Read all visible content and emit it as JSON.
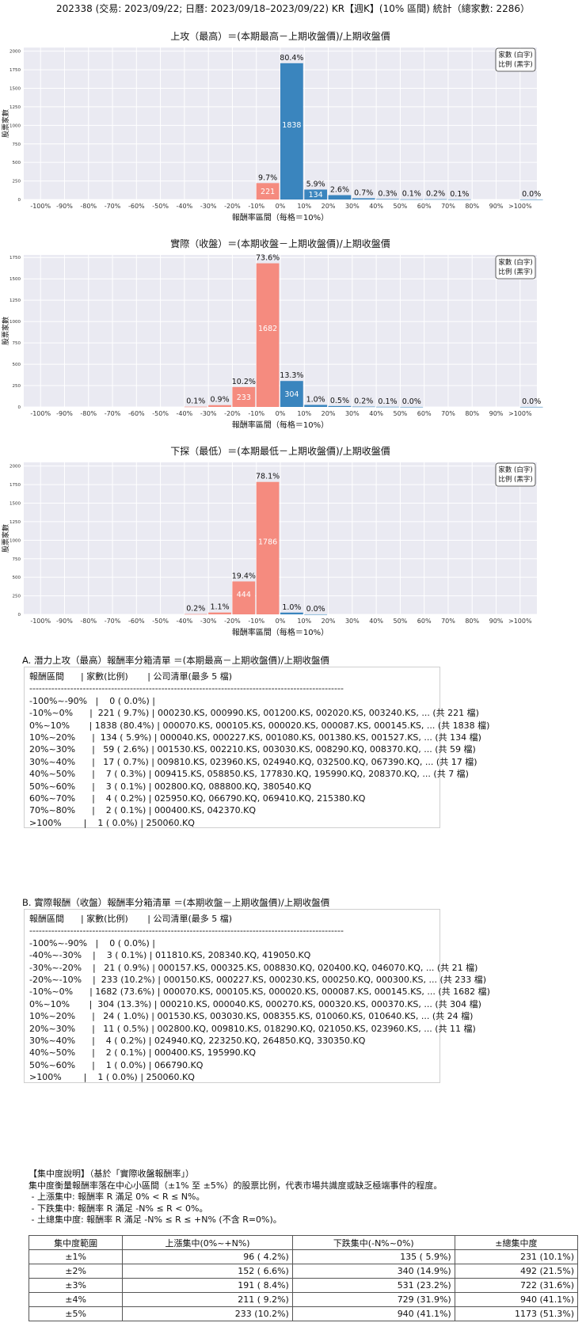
{
  "header": "202338 (交易: 2023/09/22; 日曆: 2023/09/18–2023/09/22) KR【週K】(10% 區間) 統計（總家數: 2286）",
  "legend": [
    "家數 (白字)",
    "比例 (黑字)"
  ],
  "colors": {
    "positive": "#3a85be",
    "negative": "#f58b7f",
    "plot_bg": "#eaeaf2"
  },
  "chart_data": [
    {
      "type": "bar",
      "title": "上攻（最高）＝(本期最高－上期收盤價)/上期收盤價",
      "xlabel": "報酬率區間（每格＝10%）",
      "ylabel": "股票家數",
      "ylim": [
        0,
        2050
      ],
      "yticks": [
        0,
        250,
        500,
        750,
        1000,
        1250,
        1500,
        1750,
        2000
      ],
      "categories": [
        "-100%",
        "-90%",
        "-80%",
        "-70%",
        "-60%",
        "-50%",
        "-40%",
        "-30%",
        "-20%",
        "-10%",
        "0%",
        "10%",
        "20%",
        "30%",
        "40%",
        "50%",
        "60%",
        "70%",
        "80%",
        "90%",
        ">100%"
      ],
      "bars": [
        {
          "x": -1,
          "count": 221,
          "pct": "9.7%"
        },
        {
          "x": 0,
          "count": 1838,
          "pct": "80.4%"
        },
        {
          "x": 1,
          "count": 134,
          "pct": "5.9%"
        },
        {
          "x": 2,
          "count": 59,
          "pct": "2.6%"
        },
        {
          "x": 3,
          "count": 17,
          "pct": "0.7%"
        },
        {
          "x": 4,
          "count": 7,
          "pct": "0.3%"
        },
        {
          "x": 5,
          "count": 3,
          "pct": "0.1%"
        },
        {
          "x": 6,
          "count": 4,
          "pct": "0.2%"
        },
        {
          "x": 7,
          "count": 2,
          "pct": "0.1%"
        },
        {
          "x": 10,
          "count": 1,
          "pct": "0.0%"
        }
      ]
    },
    {
      "type": "bar",
      "title": "實際（收盤）＝(本期收盤－上期收盤價)/上期收盤價",
      "xlabel": "報酬率區間（每格＝10%）",
      "ylabel": "股票家數",
      "ylim": [
        0,
        1780
      ],
      "yticks": [
        0,
        250,
        500,
        750,
        1000,
        1250,
        1500,
        1750
      ],
      "categories": [
        "-100%",
        "-90%",
        "-80%",
        "-70%",
        "-60%",
        "-50%",
        "-40%",
        "-30%",
        "-20%",
        "-10%",
        "0%",
        "10%",
        "20%",
        "30%",
        "40%",
        "50%",
        "60%",
        "70%",
        "80%",
        "90%",
        ">100%"
      ],
      "bars": [
        {
          "x": -4,
          "count": 3,
          "pct": "0.1%"
        },
        {
          "x": -3,
          "count": 21,
          "pct": "0.9%"
        },
        {
          "x": -2,
          "count": 233,
          "pct": "10.2%"
        },
        {
          "x": -1,
          "count": 1682,
          "pct": "73.6%"
        },
        {
          "x": 0,
          "count": 304,
          "pct": "13.3%"
        },
        {
          "x": 1,
          "count": 24,
          "pct": "1.0%"
        },
        {
          "x": 2,
          "count": 11,
          "pct": "0.5%"
        },
        {
          "x": 3,
          "count": 4,
          "pct": "0.2%"
        },
        {
          "x": 4,
          "count": 2,
          "pct": "0.1%"
        },
        {
          "x": 5,
          "count": 1,
          "pct": "0.0%"
        },
        {
          "x": 10,
          "count": 1,
          "pct": "0.0%"
        }
      ]
    },
    {
      "type": "bar",
      "title": "下探（最低）＝(本期最低－上期收盤價)/上期收盤價",
      "xlabel": "報酬率區間（每格＝10%）",
      "ylabel": "股票家數",
      "ylim": [
        0,
        2050
      ],
      "yticks": [
        0,
        250,
        500,
        750,
        1000,
        1250,
        1500,
        1750,
        2000
      ],
      "categories": [
        "-100%",
        "-90%",
        "-80%",
        "-70%",
        "-60%",
        "-50%",
        "-40%",
        "-30%",
        "-20%",
        "-10%",
        "0%",
        "10%",
        "20%",
        "30%",
        "40%",
        "50%",
        "60%",
        "70%",
        "80%",
        "90%",
        ">100%"
      ],
      "bars": [
        {
          "x": -4,
          "count": 4,
          "pct": "0.2%"
        },
        {
          "x": -3,
          "count": 25,
          "pct": "1.1%"
        },
        {
          "x": -2,
          "count": 444,
          "pct": "19.4%"
        },
        {
          "x": -1,
          "count": 1786,
          "pct": "78.1%"
        },
        {
          "x": 0,
          "count": 24,
          "pct": "1.0%"
        },
        {
          "x": 1,
          "count": 1,
          "pct": "0.0%"
        }
      ]
    }
  ],
  "section_a": {
    "title": "A. 潛力上攻（最高）報酬率分箱清單 ＝(本期最高－上期收盤價)/上期收盤價",
    "lines": [
      "報酬區間      | 家數(比例)       | 公司清單(最多 5 檔)",
      "----------------------------------------------------------------------------------------------------",
      "-100%~-90%   |    0 ( 0.0%) |",
      "-10%~0%      |  221 ( 9.7%) | 000230.KS, 000990.KS, 001200.KS, 002020.KS, 003240.KS, ... (共 221 檔)",
      "0%~10%       | 1838 (80.4%) | 000070.KS, 000105.KS, 000020.KS, 000087.KS, 000145.KS, ... (共 1838 檔)",
      "10%~20%      |  134 ( 5.9%) | 000040.KS, 000227.KS, 001080.KS, 001380.KS, 001527.KS, ... (共 134 檔)",
      "20%~30%      |   59 ( 2.6%) | 001530.KS, 002210.KS, 003030.KS, 008290.KQ, 008370.KQ, ... (共 59 檔)",
      "30%~40%      |   17 ( 0.7%) | 009810.KS, 023960.KS, 024940.KQ, 032500.KQ, 067390.KQ, ... (共 17 檔)",
      "40%~50%      |    7 ( 0.3%) | 009415.KS, 058850.KS, 177830.KQ, 195990.KQ, 208370.KQ, ... (共 7 檔)",
      "50%~60%      |    3 ( 0.1%) | 002800.KQ, 088800.KQ, 380540.KQ",
      "60%~70%      |    4 ( 0.2%) | 025950.KQ, 066790.KQ, 069410.KQ, 215380.KQ",
      "70%~80%      |    2 ( 0.1%) | 000400.KS, 042370.KQ",
      ">100%        |    1 ( 0.0%) | 250060.KQ"
    ]
  },
  "section_b": {
    "title": "B. 實際報酬（收盤）報酬率分箱清單 ＝(本期收盤－上期收盤價)/上期收盤價",
    "lines": [
      "報酬區間      | 家數(比例)       | 公司清單(最多 5 檔)",
      "----------------------------------------------------------------------------------------------------",
      "-100%~-90%   |    0 ( 0.0%) |",
      "-40%~-30%    |    3 ( 0.1%) | 011810.KS, 208340.KQ, 419050.KQ",
      "-30%~-20%    |   21 ( 0.9%) | 000157.KS, 000325.KS, 008830.KQ, 020400.KQ, 046070.KQ, ... (共 21 檔)",
      "-20%~-10%    |  233 (10.2%) | 000150.KS, 000227.KS, 000230.KS, 000250.KQ, 000300.KS, ... (共 233 檔)",
      "-10%~0%      | 1682 (73.6%) | 000070.KS, 000105.KS, 000020.KS, 000087.KS, 000145.KS, ... (共 1682 檔)",
      "0%~10%       |  304 (13.3%) | 000210.KS, 000040.KS, 000270.KS, 000320.KS, 000370.KS, ... (共 304 檔)",
      "10%~20%      |   24 ( 1.0%) | 001530.KS, 003030.KS, 008355.KS, 010060.KS, 010640.KS, ... (共 24 檔)",
      "20%~30%      |   11 ( 0.5%) | 002800.KQ, 009810.KS, 018290.KQ, 021050.KS, 023960.KS, ... (共 11 檔)",
      "30%~40%      |    4 ( 0.2%) | 024940.KQ, 223250.KQ, 264850.KQ, 330350.KQ",
      "40%~50%      |    2 ( 0.1%) | 000400.KS, 195990.KQ",
      "50%~60%      |    1 ( 0.0%) | 066790.KQ",
      ">100%        |    1 ( 0.0%) | 250060.KQ"
    ]
  },
  "concentration": {
    "notes": [
      "【集中度說明】（基於「實際收盤報酬率」）",
      "集中度衡量報酬率落在中心小區間（±1% 至 ±5%）的股票比例，代表市場共識度或缺乏極端事件的程度。",
      " - 上漲集中: 報酬率 R 滿足 0% < R ≤ N%。",
      " - 下跌集中: 報酬率 R 滿足 -N% ≤ R < 0%。",
      " - 土總集中度: 報酬率 R 滿足 -N% ≤ R ≤ +N% (不含 R=0%)。"
    ],
    "headers": [
      "集中度範圍",
      "上漲集中(0%~+N%)",
      "下跌集中(-N%~0%)",
      "±總集中度"
    ],
    "rows": [
      [
        "±1%",
        "96 ( 4.2%)",
        "135 ( 5.9%)",
        "231 (10.1%)"
      ],
      [
        "±2%",
        "152 ( 6.6%)",
        "340 (14.9%)",
        "492 (21.5%)"
      ],
      [
        "±3%",
        "191 ( 8.4%)",
        "531 (23.2%)",
        "722 (31.6%)"
      ],
      [
        "±4%",
        "211 ( 9.2%)",
        "729 (31.9%)",
        "940 (41.1%)"
      ],
      [
        "±5%",
        "233 (10.2%)",
        "940 (41.1%)",
        "1173 (51.3%)"
      ]
    ]
  }
}
